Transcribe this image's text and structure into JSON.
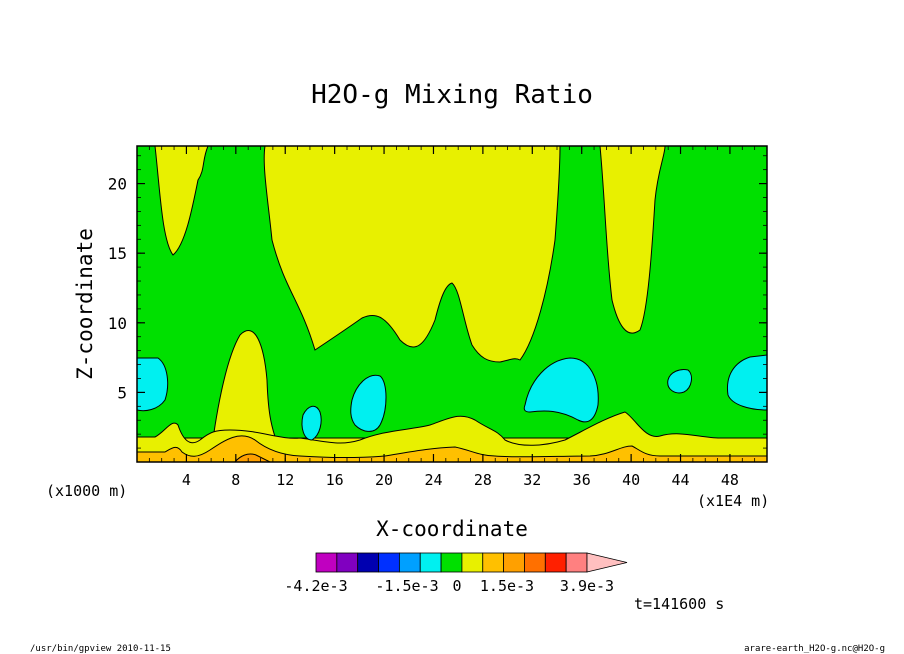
{
  "chart_data": {
    "type": "contour",
    "title": "H2O-g Mixing Ratio",
    "xlabel": "X-coordinate",
    "ylabel": "Z-coordinate",
    "x_ticks": [
      "4",
      "8",
      "12",
      "16",
      "20",
      "24",
      "28",
      "32",
      "36",
      "40",
      "44",
      "48"
    ],
    "y_ticks": [
      "5",
      "10",
      "15",
      "20"
    ],
    "x_range": [
      0,
      51
    ],
    "y_range": [
      0,
      22.7
    ],
    "x_scale_note": "(x1E4 m)",
    "y_scale_note": "(x1000 m)",
    "time_label": "t=141600 s",
    "colorbar": {
      "labels": [
        "-4.2e-3",
        "-1.5e-3",
        "0",
        "1.5e-3",
        "3.9e-3"
      ],
      "colors": [
        "#c000c0",
        "#8000c0",
        "#0000b0",
        "#0030ff",
        "#00a0ff",
        "#00f0f0",
        "#00e000",
        "#e8f000",
        "#ffc000",
        "#ffa000",
        "#ff7000",
        "#ff2000",
        "#ff8080",
        "#ffc0c0"
      ]
    },
    "field_colors": {
      "cyan": "#00f0f0",
      "green": "#00e000",
      "yellow": "#e8f000",
      "gold": "#ffc000",
      "orange": "#ffa000"
    }
  },
  "footer": {
    "left": "/usr/bin/gpview   2010-11-15",
    "right": "arare-earth_H2O-g.nc@H2O-g"
  }
}
